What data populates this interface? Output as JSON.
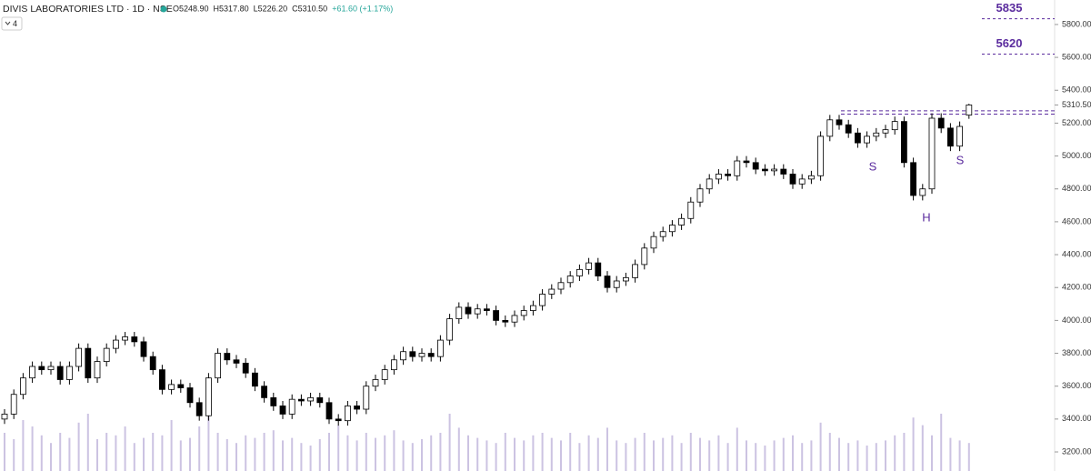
{
  "chart_data": {
    "type": "candlestick",
    "title": "DIVIS LABORATORIES LTD · 1D · NSE",
    "ohlc_legend": [
      "O5248.90",
      "H5317.80",
      "L5226.20",
      "C5310.50",
      "+61.60 (+1.17%)"
    ],
    "indicator": "4",
    "open": [
      3400,
      3430,
      3550,
      3650,
      3720,
      3700,
      3720,
      3640,
      3720,
      3830,
      3650,
      3750,
      3830,
      3880,
      3900,
      3870,
      3780,
      3700,
      3580,
      3610,
      3590,
      3500,
      3420,
      3650,
      3800,
      3760,
      3740,
      3680,
      3600,
      3530,
      3480,
      3430,
      3520,
      3510,
      3530,
      3500,
      3400,
      3390,
      3480,
      3460,
      3600,
      3640,
      3700,
      3760,
      3810,
      3780,
      3800,
      3780,
      3880,
      4010,
      4080,
      4040,
      4070,
      4060,
      4000,
      3990,
      4030,
      4060,
      4090,
      4160,
      4190,
      4230,
      4270,
      4310,
      4350,
      4270,
      4200,
      4240,
      4260,
      4340,
      4440,
      4510,
      4540,
      4580,
      4620,
      4720,
      4800,
      4860,
      4890,
      4880,
      4970,
      4960,
      4920,
      4910,
      4920,
      4890,
      4830,
      4860,
      4880,
      5120,
      5220,
      5190,
      5140,
      5080,
      5120,
      5140,
      5160,
      5210,
      4960,
      4760,
      4800,
      5230,
      5170,
      5060,
      5248.9
    ],
    "high": [
      3460,
      3580,
      3680,
      3750,
      3750,
      3750,
      3750,
      3750,
      3860,
      3860,
      3780,
      3860,
      3910,
      3930,
      3930,
      3900,
      3810,
      3730,
      3640,
      3640,
      3620,
      3530,
      3680,
      3830,
      3830,
      3790,
      3770,
      3710,
      3630,
      3560,
      3510,
      3550,
      3550,
      3560,
      3560,
      3530,
      3430,
      3510,
      3510,
      3630,
      3670,
      3730,
      3790,
      3840,
      3840,
      3830,
      3830,
      3910,
      4040,
      4110,
      4110,
      4100,
      4100,
      4090,
      4030,
      4060,
      4090,
      4120,
      4190,
      4220,
      4260,
      4300,
      4340,
      4380,
      4380,
      4300,
      4270,
      4290,
      4370,
      4470,
      4540,
      4570,
      4610,
      4650,
      4750,
      4830,
      4890,
      4920,
      4920,
      5000,
      5000,
      4990,
      4950,
      4950,
      4950,
      4920,
      4890,
      4910,
      5150,
      5250,
      5250,
      5220,
      5170,
      5150,
      5170,
      5190,
      5240,
      5240,
      4990,
      4830,
      5260,
      5260,
      5200,
      5210,
      5317.8
    ],
    "low": [
      3370,
      3400,
      3520,
      3620,
      3670,
      3670,
      3610,
      3610,
      3690,
      3620,
      3620,
      3720,
      3800,
      3850,
      3840,
      3750,
      3670,
      3550,
      3550,
      3560,
      3470,
      3390,
      3390,
      3620,
      3730,
      3710,
      3650,
      3570,
      3500,
      3450,
      3400,
      3400,
      3480,
      3480,
      3470,
      3370,
      3360,
      3360,
      3430,
      3430,
      3570,
      3610,
      3670,
      3730,
      3750,
      3750,
      3750,
      3750,
      3850,
      3980,
      4010,
      4010,
      4030,
      3970,
      3960,
      3960,
      4000,
      4030,
      4060,
      4130,
      4160,
      4200,
      4240,
      4280,
      4240,
      4170,
      4170,
      4210,
      4230,
      4310,
      4410,
      4480,
      4510,
      4550,
      4590,
      4690,
      4770,
      4830,
      4850,
      4850,
      4930,
      4890,
      4880,
      4880,
      4860,
      4800,
      4800,
      4830,
      4850,
      5090,
      5160,
      5110,
      5050,
      5050,
      5090,
      5110,
      5130,
      4930,
      4730,
      4730,
      4770,
      5140,
      5030,
      5030,
      5226.2
    ],
    "close": [
      3430,
      3550,
      3650,
      3720,
      3700,
      3720,
      3640,
      3720,
      3830,
      3650,
      3750,
      3830,
      3880,
      3900,
      3870,
      3780,
      3700,
      3580,
      3610,
      3590,
      3500,
      3420,
      3650,
      3800,
      3760,
      3740,
      3680,
      3600,
      3530,
      3480,
      3430,
      3520,
      3510,
      3530,
      3500,
      3400,
      3390,
      3480,
      3460,
      3600,
      3640,
      3700,
      3760,
      3810,
      3780,
      3800,
      3780,
      3880,
      4010,
      4080,
      4040,
      4070,
      4060,
      4000,
      3990,
      4030,
      4060,
      4090,
      4160,
      4190,
      4230,
      4270,
      4310,
      4350,
      4270,
      4200,
      4240,
      4260,
      4340,
      4440,
      4510,
      4540,
      4580,
      4620,
      4720,
      4800,
      4860,
      4890,
      4880,
      4970,
      4960,
      4920,
      4910,
      4920,
      4890,
      4830,
      4860,
      4880,
      5120,
      5220,
      5190,
      5140,
      5080,
      5120,
      5140,
      5160,
      5210,
      4960,
      4760,
      4800,
      5230,
      5170,
      5060,
      5180,
      5310.5
    ],
    "volume": [
      30,
      25,
      40,
      35,
      28,
      22,
      30,
      26,
      38,
      45,
      25,
      30,
      28,
      35,
      22,
      26,
      30,
      28,
      40,
      24,
      26,
      35,
      48,
      30,
      25,
      22,
      28,
      26,
      30,
      32,
      24,
      26,
      22,
      20,
      25,
      30,
      36,
      28,
      24,
      30,
      26,
      28,
      32,
      24,
      22,
      25,
      28,
      30,
      45,
      34,
      28,
      26,
      24,
      22,
      30,
      26,
      24,
      28,
      30,
      26,
      24,
      30,
      22,
      28,
      26,
      34,
      24,
      22,
      26,
      30,
      24,
      26,
      28,
      22,
      30,
      26,
      24,
      28,
      22,
      34,
      24,
      22,
      20,
      24,
      26,
      28,
      22,
      24,
      38,
      30,
      26,
      22,
      24,
      20,
      22,
      24,
      28,
      30,
      42,
      36,
      28,
      45,
      26,
      24,
      22
    ],
    "up_color": "#ffffff",
    "down_color": "#000000",
    "volume_color": "#b7a9d6",
    "level_color": "#5b2c9e",
    "ylim": [
      3084,
      5949
    ],
    "yticks": [
      {
        "value": 3200,
        "label": "3200.00"
      },
      {
        "value": 3400,
        "label": "3400.00"
      },
      {
        "value": 3600,
        "label": "3600.00"
      },
      {
        "value": 3800,
        "label": "3800.00"
      },
      {
        "value": 4000,
        "label": "4000.00"
      },
      {
        "value": 4200,
        "label": "4200.00"
      },
      {
        "value": 4400,
        "label": "4400.00"
      },
      {
        "value": 4600,
        "label": "4600.00"
      },
      {
        "value": 4800,
        "label": "4800.00"
      },
      {
        "value": 5000,
        "label": "5000.00"
      },
      {
        "value": 5200,
        "label": "5200.00"
      },
      {
        "value": 5400,
        "label": "5400.00"
      },
      {
        "value": 5600,
        "label": "5600.00"
      },
      {
        "value": 5800,
        "label": "5800.00"
      }
    ],
    "last_price": {
      "value": 5310.5,
      "label": "5310.50"
    },
    "levels": [
      {
        "value": 5835,
        "label": "5835"
      },
      {
        "value": 5620,
        "label": "5620"
      }
    ],
    "neckline": [
      5275,
      5255
    ],
    "annotations": [
      "S",
      "H",
      "S"
    ]
  }
}
